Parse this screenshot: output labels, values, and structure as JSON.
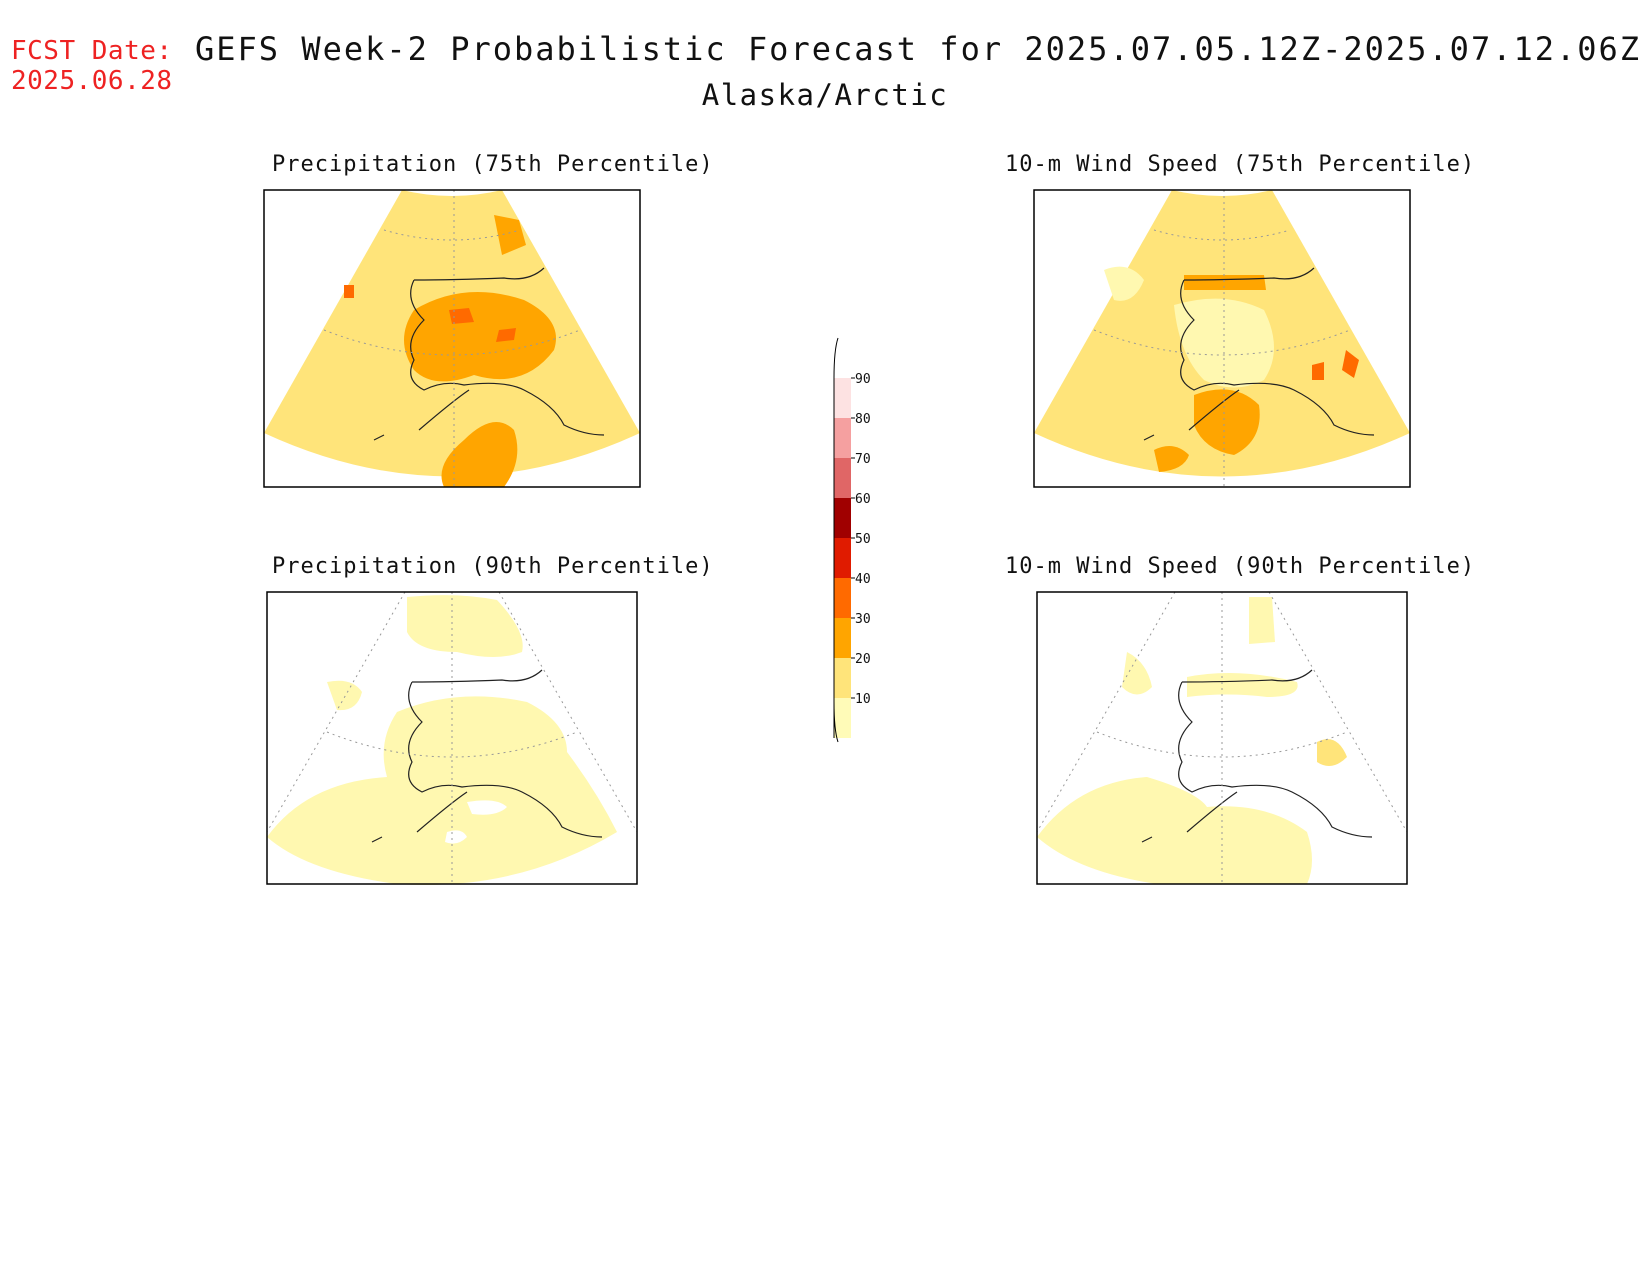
{
  "header": {
    "fcst_label": "FCST Date:",
    "fcst_date": "2025.06.28",
    "title": "GEFS Week-2 Probabilistic Forecast for 2025.07.05.12Z-2025.07.12.06Z",
    "subtitle": "Alaska/Arctic"
  },
  "panels": [
    {
      "id": "precip-75",
      "title": "Precipitation (75th Percentile)",
      "fill": "#ffe47a"
    },
    {
      "id": "wind-75",
      "title": "10-m Wind Speed (75th Percentile)",
      "fill": "#ffe47a"
    },
    {
      "id": "precip-90",
      "title": "Precipitation (90th Percentile)",
      "fill": "#fff8b0"
    },
    {
      "id": "wind-90",
      "title": "10-m Wind Speed (90th Percentile)",
      "fill": "#fff8b0"
    }
  ],
  "colorbar": {
    "levels": [
      "10",
      "20",
      "30",
      "40",
      "50",
      "60",
      "70",
      "80",
      "90"
    ],
    "colors": [
      "#fffbb8",
      "#ffe47a",
      "#ffa500",
      "#ff6a00",
      "#e01b00",
      "#a00000",
      "#e06666",
      "#f5a0a0",
      "#fde2e2"
    ],
    "colors_note_none": ""
  }
}
